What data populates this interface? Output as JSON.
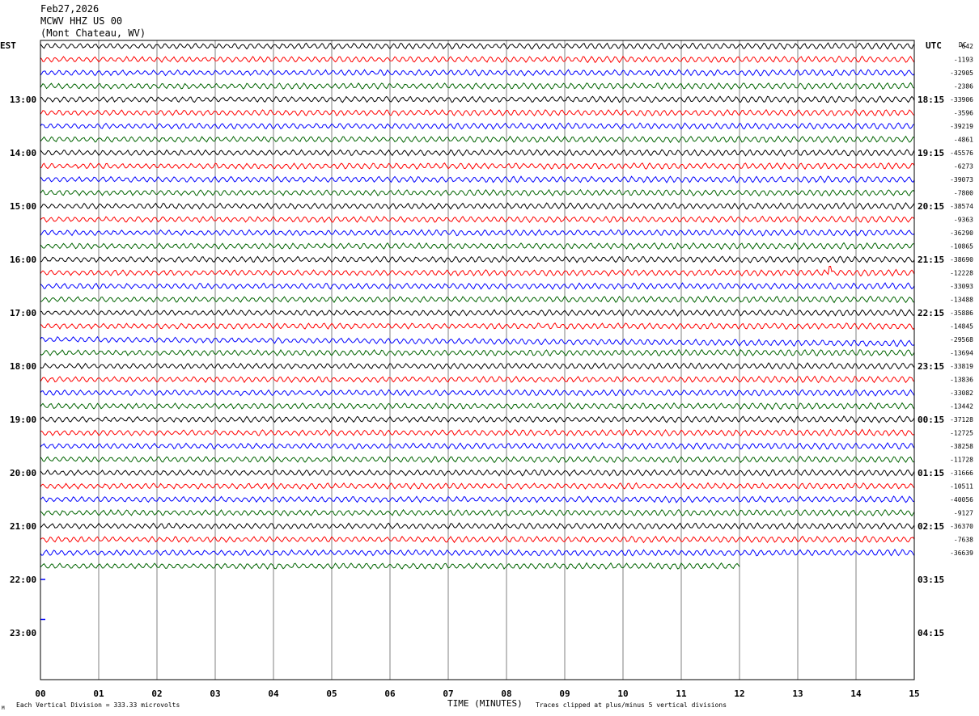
{
  "header": {
    "date": "Feb27,2026",
    "station": "MCWV HHZ US 00",
    "location": "(Mont Chateau, WV)"
  },
  "footer": {
    "scale_note": "Each Vertical Division =  333.33 microvolts",
    "clip_note": "Traces clipped at plus/minus 5 vertical divisions",
    "corner_mark": "M"
  },
  "colors": {
    "trace_cycle": [
      "#000000",
      "#ff0000",
      "#0000ff",
      "#006400"
    ],
    "grid": "#808080",
    "frame": "#000000"
  },
  "chart_data": {
    "type": "line",
    "subtype": "helicorder",
    "left_axis_label": "EST",
    "right_axis_label": "UTC",
    "dc_label": "DC",
    "xlabel": "TIME (MINUTES)",
    "x_ticks": [
      "00",
      "01",
      "02",
      "03",
      "04",
      "05",
      "06",
      "07",
      "08",
      "09",
      "10",
      "11",
      "12",
      "13",
      "14",
      "15"
    ],
    "xlim": [
      0,
      15
    ],
    "minutes_per_line": 15,
    "total_lines": 48,
    "recorded_lines": 40,
    "last_line_end_minute": 12,
    "left_hour_labels": [
      "13:00",
      "14:00",
      "15:00",
      "16:00",
      "17:00",
      "18:00",
      "19:00",
      "20:00",
      "21:00",
      "22:00",
      "23:00"
    ],
    "right_hour_labels": [
      "18:15",
      "19:15",
      "20:15",
      "21:15",
      "22:15",
      "23:15",
      "00:15",
      "01:15",
      "02:15",
      "03:15",
      "04:15"
    ],
    "dc_offsets": [
      "-642",
      "-1193",
      "-32905",
      "-2386",
      "-33906",
      "-3596",
      "-39219",
      "-4861",
      "-45576",
      "-6273",
      "-39073",
      "-7800",
      "-38574",
      "-9363",
      "-36290",
      "-10865",
      "-38690",
      "-12228",
      "-33093",
      "-13488",
      "-35886",
      "-14845",
      "-29568",
      "-13694",
      "-33819",
      "-13836",
      "-33082",
      "-13442",
      "-37128",
      "-12725",
      "-38258",
      "-11728",
      "-31666",
      "-10511",
      "-40056",
      "-9127",
      "-36370",
      "-7638",
      "-36639"
    ],
    "short_markers_at_lines": [
      40,
      43
    ],
    "notable_events": [
      {
        "line": 17,
        "minute": 13.55,
        "description": "spike"
      }
    ]
  }
}
